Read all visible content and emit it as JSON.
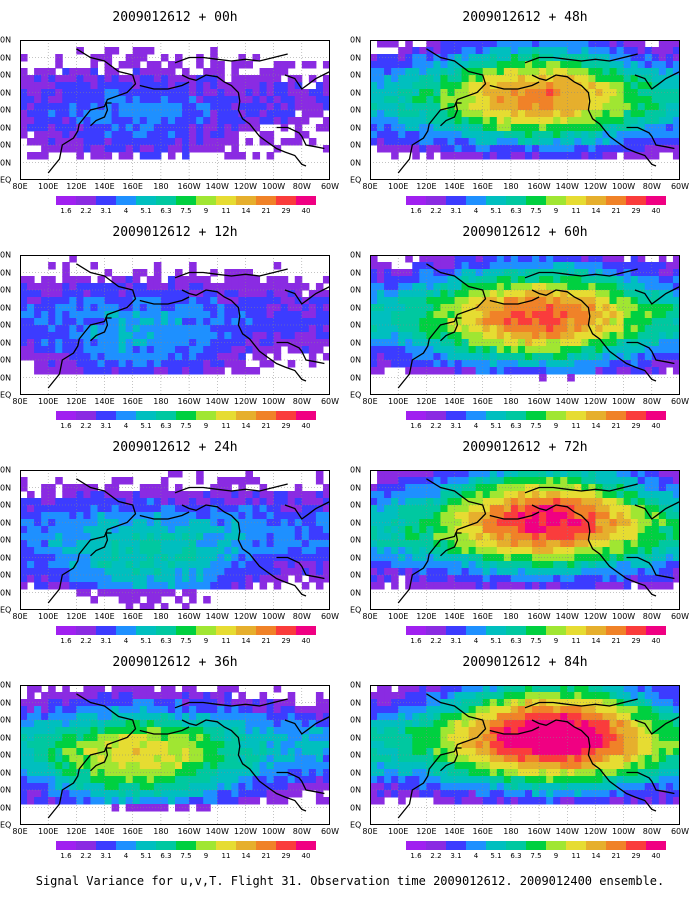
{
  "caption": "Signal Variance for u,v,T. Flight 31. Observation time 2009012612. 2009012400 ensemble.",
  "y_tick_labels": [
    "EQ",
    "0N",
    "0N",
    "0N",
    "0N",
    "0N",
    "0N",
    "0N",
    "0N"
  ],
  "x_tick_labels": [
    "80E",
    "100E",
    "120E",
    "140E",
    "160E",
    "180",
    "160W",
    "140W",
    "120W",
    "100W",
    "80W",
    "60W"
  ],
  "legend": {
    "colors": [
      "#a020f0",
      "#8a2be2",
      "#3c3cff",
      "#1e90ff",
      "#00bfbf",
      "#00c8a0",
      "#00d040",
      "#a0e632",
      "#e6dc32",
      "#e6af2d",
      "#f08228",
      "#fa3c3c",
      "#f00082"
    ],
    "labels": [
      "1.6",
      "2.2",
      "3.1",
      "4",
      "5.1",
      "6.3",
      "7.5",
      "9",
      "11",
      "14",
      "21",
      "29",
      "40"
    ]
  },
  "chart_data": [
    {
      "type": "heatmap",
      "title": "2009012612 + 00h",
      "intensity": 0.15,
      "extent": 0.35,
      "hotspots": [
        {
          "lon": 160,
          "lat": 30
        }
      ]
    },
    {
      "type": "heatmap",
      "title": "2009012612 + 48h",
      "intensity": 0.55,
      "extent": 0.85,
      "hotspots": [
        {
          "lon": 200,
          "lat": 50
        }
      ]
    },
    {
      "type": "heatmap",
      "title": "2009012612 + 12h",
      "intensity": 0.2,
      "extent": 0.45,
      "hotspots": [
        {
          "lon": 165,
          "lat": 25
        }
      ]
    },
    {
      "type": "heatmap",
      "title": "2009012612 + 60h",
      "intensity": 0.6,
      "extent": 0.9,
      "hotspots": [
        {
          "lon": 200,
          "lat": 45
        }
      ]
    },
    {
      "type": "heatmap",
      "title": "2009012612 + 24h",
      "intensity": 0.3,
      "extent": 0.6,
      "hotspots": [
        {
          "lon": 170,
          "lat": 20
        }
      ]
    },
    {
      "type": "heatmap",
      "title": "2009012612 + 72h",
      "intensity": 0.7,
      "extent": 0.95,
      "hotspots": [
        {
          "lon": 205,
          "lat": 55
        }
      ]
    },
    {
      "type": "heatmap",
      "title": "2009012612 + 36h",
      "intensity": 0.45,
      "extent": 0.75,
      "hotspots": [
        {
          "lon": 165,
          "lat": 35
        }
      ]
    },
    {
      "type": "heatmap",
      "title": "2009012612 + 84h",
      "intensity": 0.8,
      "extent": 1.0,
      "hotspots": [
        {
          "lon": 210,
          "lat": 55
        }
      ]
    }
  ]
}
